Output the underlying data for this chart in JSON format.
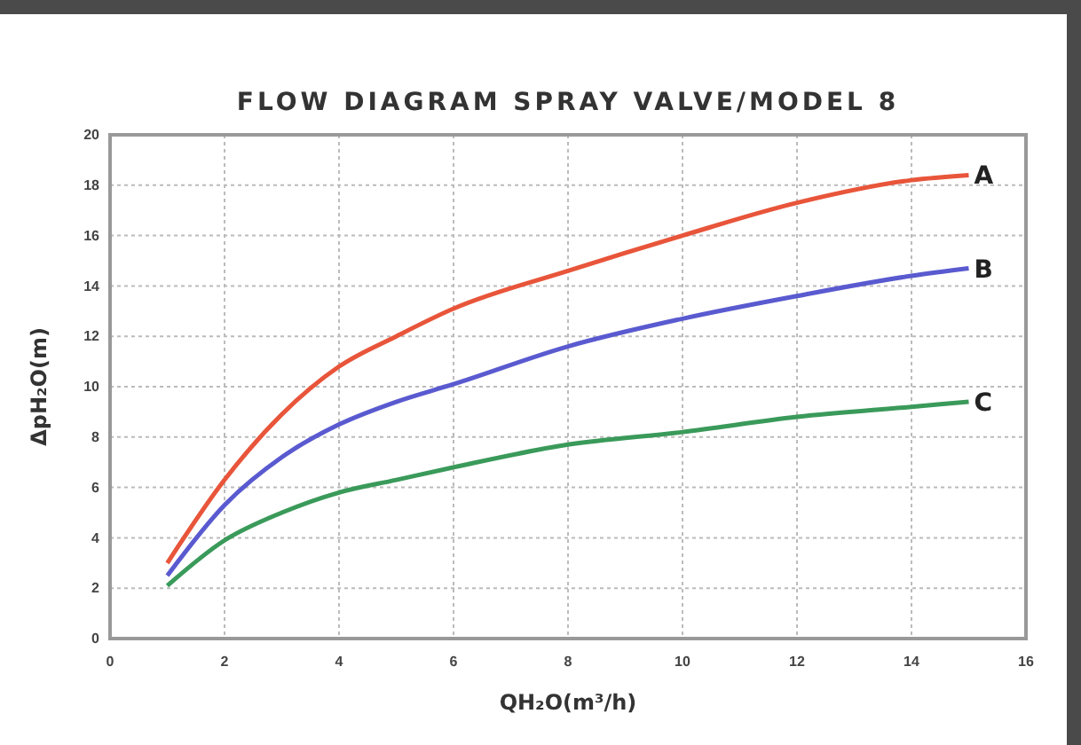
{
  "chart_data": {
    "type": "line",
    "title": "FLOW DIAGRAM SPRAY VALVE/MODEL 8",
    "xlabel": "QH₂O(m³/h)",
    "ylabel": "ΔpH₂O(m)",
    "xlim": [
      0,
      16
    ],
    "xticks": [
      0,
      2,
      4,
      6,
      8,
      10,
      12,
      14,
      16
    ],
    "ylim": [
      0,
      20
    ],
    "yticks": [
      0,
      2,
      4,
      6,
      8,
      10,
      12,
      14,
      16,
      18,
      20
    ],
    "grid": true,
    "line_style": "solid",
    "marker": "none",
    "x": [
      1,
      2,
      3,
      4,
      5,
      6,
      8,
      10,
      12,
      14,
      15
    ],
    "series": [
      {
        "name": "A",
        "color": "#e8553a",
        "values": [
          3.0,
          6.3,
          8.9,
          10.8,
          12.0,
          13.1,
          14.6,
          16.0,
          17.3,
          18.2,
          18.4
        ]
      },
      {
        "name": "B",
        "color": "#5a5ad0",
        "values": [
          2.5,
          5.3,
          7.2,
          8.5,
          9.4,
          10.1,
          11.6,
          12.7,
          13.6,
          14.4,
          14.7
        ]
      },
      {
        "name": "C",
        "color": "#3a9a5a",
        "values": [
          2.1,
          3.9,
          5.0,
          5.8,
          6.3,
          6.8,
          7.7,
          8.2,
          8.8,
          9.2,
          9.4
        ]
      }
    ]
  }
}
